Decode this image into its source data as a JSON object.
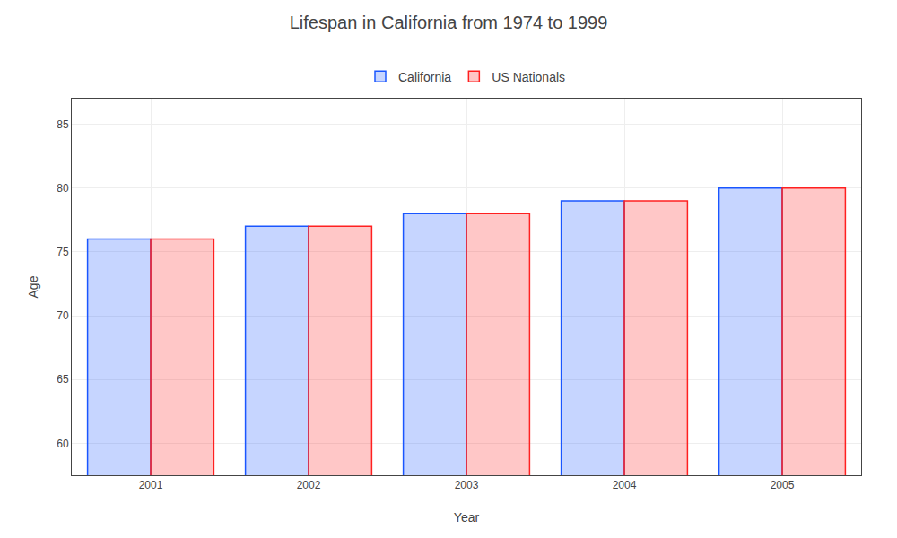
{
  "chart_data": {
    "type": "bar",
    "title": "Lifespan in California from 1974 to 1999",
    "xlabel": "Year",
    "ylabel": "Age",
    "categories": [
      "2001",
      "2002",
      "2003",
      "2004",
      "2005"
    ],
    "series": [
      {
        "name": "California",
        "color": "#1a56ff",
        "values": [
          76,
          77,
          78,
          79,
          80
        ]
      },
      {
        "name": "US Nationals",
        "color": "#ff2020",
        "values": [
          76,
          77,
          78,
          79,
          80
        ]
      }
    ],
    "ylim": [
      57.5,
      87
    ],
    "yticks": [
      60,
      65,
      70,
      75,
      80,
      85
    ],
    "grid": true,
    "legend": "top"
  }
}
